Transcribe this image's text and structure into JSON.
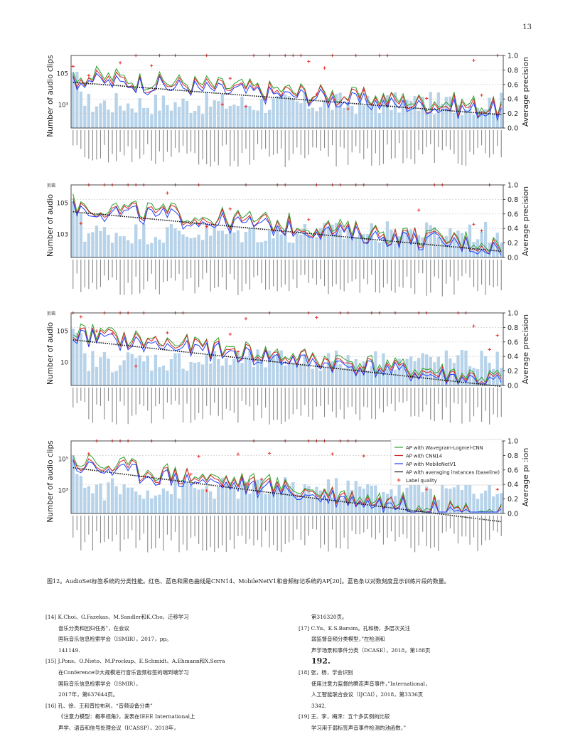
{
  "page": {
    "number": "13"
  },
  "side_marks": [
    "剪辑",
    "剪辑"
  ],
  "panels": [
    {
      "left_axis": {
        "label": "Number of audio clips",
        "ticks": [
          "105",
          "10³"
        ]
      },
      "right_axis": {
        "label": "Average precision",
        "ticks": [
          "1.0",
          "0.8",
          "0.6",
          "0.4",
          "0.2",
          "0.0"
        ]
      }
    },
    {
      "left_axis": {
        "label": "Number of audio",
        "ticks": [
          "105",
          "103"
        ]
      },
      "right_axis": {
        "label": "Average precision",
        "ticks": [
          "1.0",
          "0.8",
          "0.6",
          "0.4",
          "0.2",
          "0.0"
        ]
      }
    },
    {
      "left_axis": {
        "label": "Number of audio",
        "ticks": [
          "105",
          "10"
        ]
      },
      "right_axis": {
        "label": "Average precision",
        "ticks": [
          "1.0",
          "0.8",
          "0.6",
          "0.4",
          "0.2",
          "0.0"
        ]
      }
    },
    {
      "left_axis": {
        "label": "Number of audio clips",
        "ticks": [
          "10⁵",
          "10³"
        ]
      },
      "right_axis": {
        "label": "Average pı :ion",
        "ticks": [
          "1.0",
          "0.8",
          "0.6",
          "0.4",
          "0.2",
          "0.0"
        ]
      },
      "legend": [
        {
          "label": "AP with Wavegram-Logmel-CNN",
          "color": "#2ca02c",
          "kind": "line"
        },
        {
          "label": "AP with CNN14",
          "color": "#d62728",
          "kind": "line"
        },
        {
          "label": "AP with MobileNetV1",
          "color": "#1f3fff",
          "kind": "line"
        },
        {
          "label": "AP with averaging instances (baseline)",
          "color": "#111111",
          "kind": "line"
        },
        {
          "label": "Label quality",
          "color": "#e8302a",
          "kind": "plus"
        }
      ]
    }
  ],
  "colors": {
    "bar": "#b7d3ea",
    "wavegram": "#2ca02c",
    "cnn14": "#d62728",
    "mobilenet": "#1f3fff",
    "baseline": "#111111",
    "label_quality": "#e8302a"
  },
  "caption": "图12。AudioSet标签系统的分类性能。红色、蓝色和黑色曲线是CNN14、MobileNetV1和音频标记系统的AP[20]。蓝色条以对数刻度显示训练片段的数量。",
  "references_left": [
    "[14] K.Choi、G.Fazekas、M.Sandler和K.Cho，迁移学习",
    "音乐分类和回归任务”，在会议",
    "国际音乐信息检索学会（ISMIR），2017，pp。",
    "141149.",
    "[15] J.Pons、O.Nieto、M.Prockup、E.Schmidt、A.Ehmann和X.Serra",
    "在Conference中大规模进行音乐音频标签的端到端学习",
    "国际音乐信息检索学会（ISMIR），",
    "2017年，第637644页。",
    "[16] 孔、徐、王和普拉布利，“音频设备分类”",
    "《注意力模型：概率视角》，发表在IEEE International上",
    "声学、语音和信号处理会议（ICASSP），2018年，"
  ],
  "references_right": [
    "第316320页。",
    "[17] C.Yu、K.S.Barsim。孔和杨，多层次关注",
    "弱监督音频分类模型，”在检测和",
    "声学场景和事件分类（DCASE），2018，第188页",
    "192.",
    "[18] 张，杨，学会识别",
    "使用注意力监督的瞬态声音事件，”International，",
    "人工智能联合会议（IJCAI），2018，第3336页",
    "3342.",
    "[19] 王、李，梅泽：五个多实例的比较",
    "学习用于弱标签声音事件检测的池函数，”"
  ]
}
